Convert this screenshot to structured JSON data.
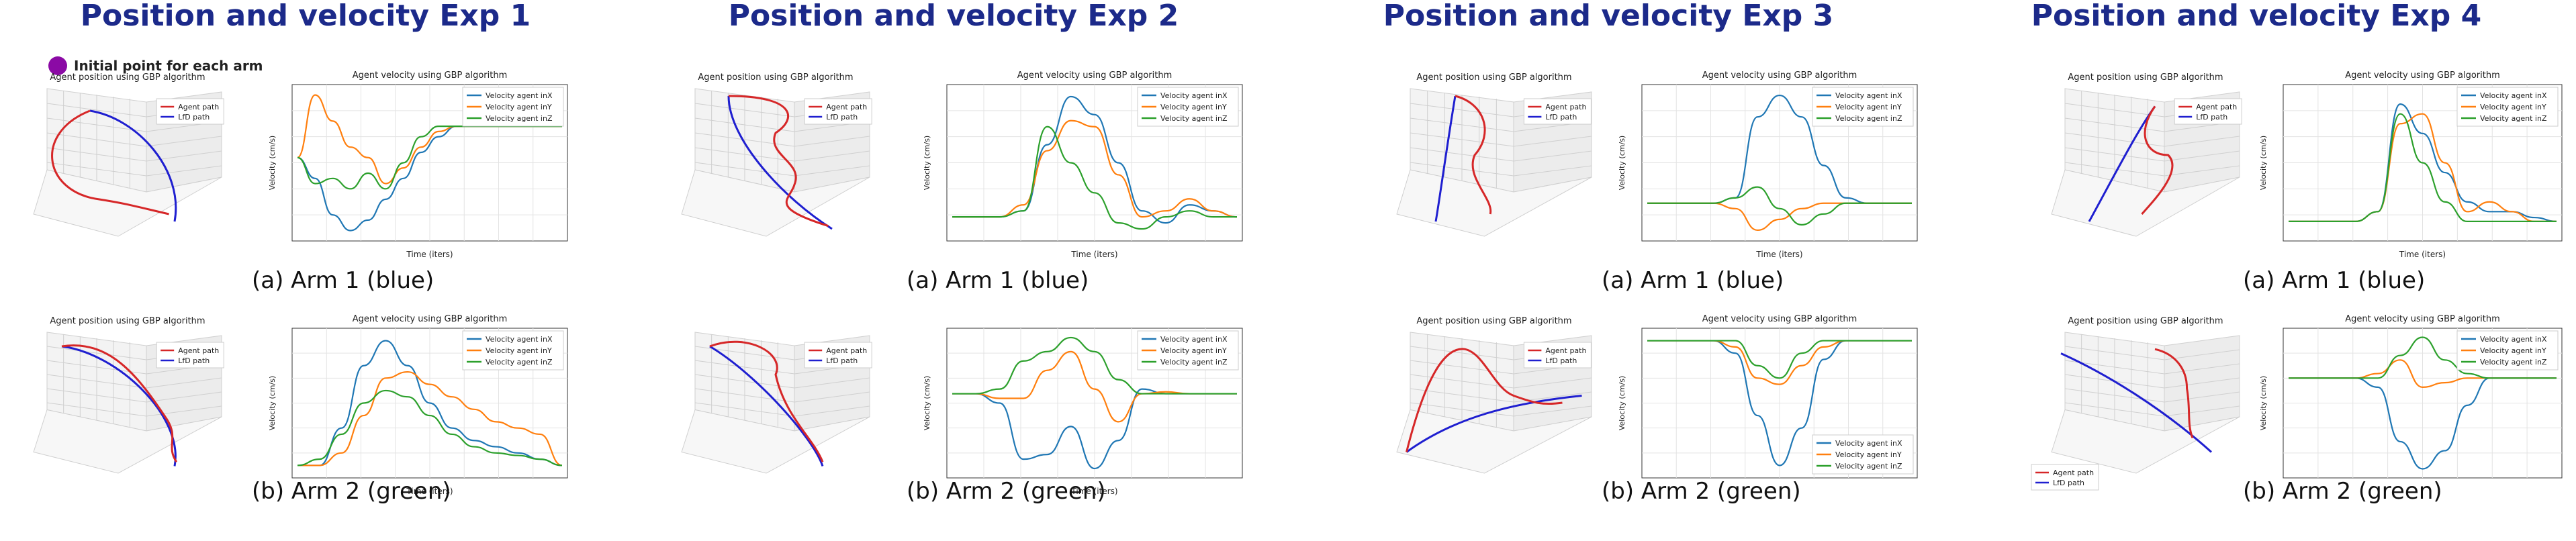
{
  "chart_data": [
    {
      "type": "figure",
      "title": "Position and velocity Exp 1",
      "initial_point_label": "Initial point for each arm",
      "rows": [
        {
          "caption": "(a) Arm 1 (blue)",
          "position": {
            "title": "Agent position using GBP algorithm",
            "legend": [
              "Agent path",
              "LfD path"
            ],
            "agent_color": "#d62728",
            "lfd_color": "#1f1fd0"
          },
          "velocity": {
            "title": "Agent velocity using GBP algorithm",
            "xlabel": "Time (iters)",
            "ylabel": "Velocity (cm/s)",
            "legend_pos": "top-right",
            "series": [
              {
                "name": "Velocity agent inX",
                "color": "#1f77b4",
                "values": [
                  0,
                  -0.2,
                  -0.55,
                  -0.7,
                  -0.6,
                  -0.4,
                  -0.2,
                  0.05,
                  0.2,
                  0.3,
                  0.3,
                  0.3,
                  0.3,
                  0.3,
                  0.3,
                  0.3
                ]
              },
              {
                "name": "Velocity agent inY",
                "color": "#ff7f0e",
                "values": [
                  0,
                  0.6,
                  0.35,
                  0.1,
                  0,
                  -0.25,
                  -0.1,
                  0.1,
                  0.25,
                  0.3,
                  0.3,
                  0.3,
                  0.3,
                  0.3,
                  0.3,
                  0.3
                ]
              },
              {
                "name": "Velocity agent inZ",
                "color": "#2ca02c",
                "values": [
                  0,
                  -0.25,
                  -0.2,
                  -0.3,
                  -0.15,
                  -0.3,
                  -0.05,
                  0.2,
                  0.3,
                  0.3,
                  0.3,
                  0.3,
                  0.3,
                  0.3,
                  0.3,
                  0.3
                ]
              }
            ]
          }
        },
        {
          "caption": "(b) Arm 2 (green)",
          "position": {
            "title": "Agent position using GBP algorithm",
            "legend": [
              "Agent path",
              "LfD path"
            ],
            "agent_color": "#d62728",
            "lfd_color": "#1f1fd0"
          },
          "velocity": {
            "title": "Agent velocity using GBP algorithm",
            "xlabel": "Time (iters)",
            "ylabel": "Velocity (cm/s)",
            "legend_pos": "top-right",
            "series": [
              {
                "name": "Velocity agent inX",
                "color": "#1f77b4",
                "values": [
                  0,
                  0,
                  0.3,
                  0.8,
                  1,
                  0.8,
                  0.5,
                  0.3,
                  0.2,
                  0.15,
                  0.1,
                  0.05,
                  0
                ]
              },
              {
                "name": "Velocity agent inY",
                "color": "#ff7f0e",
                "values": [
                  0,
                  0,
                  0.1,
                  0.4,
                  0.7,
                  0.75,
                  0.65,
                  0.55,
                  0.45,
                  0.35,
                  0.3,
                  0.25,
                  0
                ]
              },
              {
                "name": "Velocity agent inZ",
                "color": "#2ca02c",
                "values": [
                  0,
                  0.05,
                  0.25,
                  0.5,
                  0.6,
                  0.55,
                  0.4,
                  0.25,
                  0.15,
                  0.1,
                  0.08,
                  0.05,
                  0
                ]
              }
            ]
          }
        }
      ]
    },
    {
      "type": "figure",
      "title": "Position and velocity Exp 2",
      "rows": [
        {
          "caption": "(a) Arm 1 (blue)",
          "position": {
            "title": "Agent position using GBP algorithm",
            "legend": [
              "Agent path",
              "LfD path"
            ],
            "agent_color": "#d62728",
            "lfd_color": "#1f1fd0"
          },
          "velocity": {
            "title": "Agent velocity using GBP algorithm",
            "xlabel": "Time (iters)",
            "ylabel": "Velocity (cm/s)",
            "legend_pos": "top-right",
            "series": [
              {
                "name": "Velocity agent inX",
                "color": "#1f77b4",
                "values": [
                  0,
                  0,
                  0,
                  0.05,
                  0.6,
                  1,
                  0.85,
                  0.45,
                  0.05,
                  -0.05,
                  0.1,
                  0.05,
                  0
                ]
              },
              {
                "name": "Velocity agent inY",
                "color": "#ff7f0e",
                "values": [
                  0,
                  0,
                  0,
                  0.1,
                  0.55,
                  0.8,
                  0.75,
                  0.35,
                  0,
                  0.05,
                  0.15,
                  0.05,
                  0
                ]
              },
              {
                "name": "Velocity agent inZ",
                "color": "#2ca02c",
                "values": [
                  0,
                  0,
                  0,
                  0.05,
                  0.75,
                  0.45,
                  0.2,
                  -0.05,
                  -0.1,
                  0,
                  0.05,
                  0,
                  0
                ]
              }
            ]
          }
        },
        {
          "caption": "(b) Arm 2 (green)",
          "position": {
            "title": "",
            "legend": [
              "Agent path",
              "LfD path"
            ],
            "agent_color": "#d62728",
            "lfd_color": "#1f1fd0"
          },
          "velocity": {
            "title": "",
            "xlabel": "Time (iters)",
            "ylabel": "Velocity (cm/s)",
            "legend_pos": "top-right",
            "series": [
              {
                "name": "Velocity agent inX",
                "color": "#1f77b4",
                "values": [
                  0,
                  0,
                  -0.1,
                  -0.7,
                  -0.65,
                  -0.35,
                  -0.8,
                  -0.5,
                  0.05,
                  0,
                  0,
                  0,
                  0
                ]
              },
              {
                "name": "Velocity agent inY",
                "color": "#ff7f0e",
                "values": [
                  0,
                  0,
                  -0.05,
                  -0.05,
                  0.25,
                  0.45,
                  0.05,
                  -0.3,
                  0,
                  0.02,
                  0,
                  0,
                  0
                ]
              },
              {
                "name": "Velocity agent inZ",
                "color": "#2ca02c",
                "values": [
                  0,
                  0,
                  0.05,
                  0.35,
                  0.45,
                  0.6,
                  0.45,
                  0.15,
                  0,
                  0,
                  0,
                  0,
                  0
                ]
              }
            ]
          }
        }
      ]
    },
    {
      "type": "figure",
      "title": "Position and velocity Exp 3",
      "rows": [
        {
          "caption": "(a) Arm 1 (blue)",
          "position": {
            "title": "Agent position using GBP algorithm",
            "legend": [
              "Agent path",
              "LfD path"
            ],
            "agent_color": "#d62728",
            "lfd_color": "#1f1fd0"
          },
          "velocity": {
            "title": "Agent velocity using GBP algorithm",
            "xlabel": "Time (iters)",
            "ylabel": "Velocity (cm/s)",
            "legend_pos": "top-right",
            "series": [
              {
                "name": "Velocity agent inX",
                "color": "#1f77b4",
                "values": [
                  0,
                  0,
                  0,
                  0,
                  0.05,
                  0.8,
                  1,
                  0.8,
                  0.35,
                  0.05,
                  0,
                  0,
                  0
                ]
              },
              {
                "name": "Velocity agent inY",
                "color": "#ff7f0e",
                "values": [
                  0,
                  0,
                  0,
                  0,
                  -0.05,
                  -0.25,
                  -0.15,
                  -0.05,
                  0,
                  0,
                  0,
                  0,
                  0
                ]
              },
              {
                "name": "Velocity agent inZ",
                "color": "#2ca02c",
                "values": [
                  0,
                  0,
                  0,
                  0,
                  0.05,
                  0.15,
                  -0.05,
                  -0.2,
                  -0.1,
                  0,
                  0,
                  0,
                  0
                ]
              }
            ]
          }
        },
        {
          "caption": "(b) Arm 2 (green)",
          "position": {
            "title": "Agent position using GBP algorithm",
            "legend": [
              "Agent path",
              "LfD path"
            ],
            "agent_color": "#d62728",
            "lfd_color": "#1f1fd0"
          },
          "velocity": {
            "title": "Agent velocity using GBP algorithm",
            "xlabel": "",
            "ylabel": "Velocity (cm/s)",
            "legend_pos": "bottom-right",
            "series": [
              {
                "name": "Velocity agent inX",
                "color": "#1f77b4",
                "values": [
                  0,
                  0,
                  0,
                  0,
                  -0.1,
                  -0.6,
                  -1,
                  -0.7,
                  -0.15,
                  0,
                  0,
                  0,
                  0
                ]
              },
              {
                "name": "Velocity agent inY",
                "color": "#ff7f0e",
                "values": [
                  0,
                  0,
                  0,
                  0,
                  -0.05,
                  -0.3,
                  -0.35,
                  -0.2,
                  -0.05,
                  0,
                  0,
                  0,
                  0
                ]
              },
              {
                "name": "Velocity agent inZ",
                "color": "#2ca02c",
                "values": [
                  0,
                  0,
                  0,
                  0,
                  0,
                  -0.2,
                  -0.3,
                  -0.1,
                  0,
                  0,
                  0,
                  0,
                  0
                ]
              }
            ]
          }
        }
      ]
    },
    {
      "type": "figure",
      "title": "Position and velocity Exp 4",
      "rows": [
        {
          "caption": "(a) Arm 1 (blue)",
          "position": {
            "title": "Agent position using GBP algorithm",
            "legend": [
              "Agent path",
              "LfD path"
            ],
            "agent_color": "#d62728",
            "lfd_color": "#1f1fd0"
          },
          "velocity": {
            "title": "Agent velocity using GBP algorithm",
            "xlabel": "Time (iters)",
            "ylabel": "Velocity (cm/s)",
            "legend_pos": "top-right",
            "series": [
              {
                "name": "Velocity agent inX",
                "color": "#1f77b4",
                "values": [
                  0,
                  0,
                  0,
                  0,
                  0.05,
                  0.6,
                  0.45,
                  0.25,
                  0.1,
                  0.05,
                  0.05,
                  0.02,
                  0
                ]
              },
              {
                "name": "Velocity agent inY",
                "color": "#ff7f0e",
                "values": [
                  0,
                  0,
                  0,
                  0,
                  0.05,
                  0.5,
                  0.55,
                  0.3,
                  0.05,
                  0.1,
                  0.05,
                  0,
                  0
                ]
              },
              {
                "name": "Velocity agent inZ",
                "color": "#2ca02c",
                "values": [
                  0,
                  0,
                  0,
                  0,
                  0.05,
                  0.55,
                  0.3,
                  0.1,
                  0,
                  0,
                  0,
                  0,
                  0
                ]
              }
            ]
          }
        },
        {
          "caption": "(b) Arm 2 (green)",
          "position": {
            "title": "Agent position using GBP algorithm",
            "legend": [
              "Agent path",
              "LfD path"
            ],
            "agent_color": "#d62728",
            "lfd_color": "#1f1fd0",
            "legend_pos": "bottom-left"
          },
          "velocity": {
            "title": "Agent velocity using GBP algorithm",
            "xlabel": "",
            "ylabel": "Velocity (cm/s)",
            "legend_pos": "top-right",
            "series": [
              {
                "name": "Velocity agent inX",
                "color": "#1f77b4",
                "values": [
                  0,
                  0,
                  0,
                  0,
                  -0.1,
                  -0.7,
                  -1,
                  -0.8,
                  -0.3,
                  0,
                  0,
                  0,
                  0
                ]
              },
              {
                "name": "Velocity agent inY",
                "color": "#ff7f0e",
                "values": [
                  0,
                  0,
                  0,
                  0,
                  0.05,
                  0.2,
                  -0.1,
                  -0.05,
                  0,
                  0,
                  0,
                  0,
                  0
                ]
              },
              {
                "name": "Velocity agent inZ",
                "color": "#2ca02c",
                "values": [
                  0,
                  0,
                  0,
                  0,
                  0,
                  0.25,
                  0.45,
                  0.2,
                  0.05,
                  0,
                  0,
                  0,
                  0
                ]
              }
            ]
          }
        }
      ]
    }
  ]
}
